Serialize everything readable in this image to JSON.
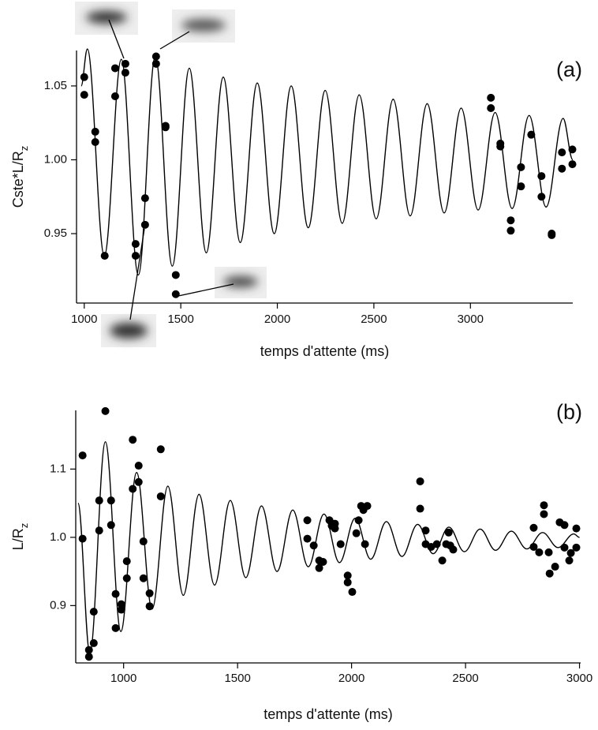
{
  "chart_data": [
    {
      "type": "scatter",
      "panel_label": "(a)",
      "xlabel": "temps d'attente (ms)",
      "ylabel": "Cste*L/Rz",
      "xlim": [
        960,
        3530
      ],
      "ylim": [
        0.903,
        1.074
      ],
      "xticks": [
        1000,
        1500,
        2000,
        2500,
        3000
      ],
      "yticks": [
        0.95,
        {
          "value": 1,
          "label": "1.00"
        },
        1.05
      ],
      "series": [
        {
          "style": "points",
          "color": "#000000",
          "x": [
            1000,
            1000,
            1057,
            1057,
            1106,
            1160,
            1160,
            1213,
            1213,
            1266,
            1266,
            1315,
            1315,
            1372,
            1372,
            1421,
            1421,
            1474,
            1474,
            3106,
            3106,
            3155,
            3155,
            3209,
            3209,
            3262,
            3262,
            3315,
            3368,
            3368,
            3421,
            3421,
            3474,
            3474,
            3528,
            3528
          ],
          "values": [
            1.056,
            1.044,
            1.019,
            1.012,
            0.935,
            1.062,
            1.043,
            1.065,
            1.059,
            0.943,
            0.935,
            0.974,
            0.956,
            1.07,
            1.065,
            1.023,
            1.022,
            0.922,
            0.909,
            1.042,
            1.035,
            1.011,
            1.009,
            0.959,
            0.952,
            0.995,
            0.982,
            1.017,
            0.989,
            0.975,
            0.95,
            0.949,
            1.005,
            0.994,
            1.007,
            0.997
          ]
        },
        {
          "style": "line",
          "color": "#000000",
          "x": [
            984,
            1016,
            1104,
            1192,
            1280,
            1368,
            1456,
            1544,
            1632,
            1720,
            1808,
            1896,
            1984,
            2072,
            2160,
            2248,
            2336,
            2424,
            2512,
            2600,
            2688,
            2776,
            2864,
            2952,
            3040,
            3128,
            3216,
            3304,
            3392,
            3480,
            3530
          ],
          "values": [
            1.05,
            1.075,
            0.935,
            1.068,
            0.922,
            1.07,
            0.928,
            1.062,
            0.937,
            1.056,
            0.944,
            1.052,
            0.95,
            1.05,
            0.954,
            1.047,
            0.957,
            1.044,
            0.96,
            1.041,
            0.962,
            1.038,
            0.964,
            1.035,
            0.966,
            1.032,
            0.967,
            1.03,
            0.968,
            1.028,
            1.0
          ]
        }
      ]
    },
    {
      "type": "scatter",
      "panel_label": "(b)",
      "xlabel": "temps d'attente (ms)",
      "ylabel": "L/Rz",
      "xlim": [
        790,
        3005
      ],
      "ylim": [
        0.816,
        1.186
      ],
      "xticks": [
        1000,
        1500,
        2000,
        2500,
        3000
      ],
      "yticks": [
        0.9,
        {
          "value": 1,
          "label": "1.0"
        },
        1.1
      ],
      "series": [
        {
          "style": "points",
          "color": "#000000",
          "x": [
            820,
            820,
            848,
            848,
            869,
            869,
            893,
            893,
            920,
            945,
            945,
            965,
            965,
            990,
            990,
            1014,
            1014,
            1040,
            1040,
            1066,
            1066,
            1087,
            1087,
            1114,
            1114,
            1163,
            1163,
            1806,
            1806,
            1834,
            1858,
            1858,
            1875,
            1903,
            1913,
            1927,
            1927,
            1952,
            1983,
            1983,
            2003,
            2021,
            2031,
            2042,
            2052,
            2059,
            2069,
            2301,
            2301,
            2325,
            2325,
            2349,
            2374,
            2398,
            2415,
            2426,
            2433,
            2446,
            2799,
            2799,
            2823,
            2844,
            2844,
            2865,
            2869,
            2893,
            2913,
            2934,
            2934,
            2955,
            2962,
            2986,
            2986
          ],
          "values": [
            1.12,
            0.998,
            0.835,
            0.825,
            0.845,
            0.891,
            1.054,
            1.01,
            1.185,
            1.054,
            1.018,
            0.917,
            0.867,
            0.902,
            0.894,
            0.965,
            0.94,
            1.143,
            1.071,
            1.081,
            1.105,
            0.994,
            0.94,
            0.918,
            0.899,
            1.129,
            1.06,
            1.025,
            0.998,
            0.988,
            0.955,
            0.966,
            0.964,
            1.025,
            1.017,
            1.013,
            1.02,
            0.99,
            0.934,
            0.944,
            0.92,
            1.006,
            1.025,
            1.046,
            1.04,
            0.99,
            1.046,
            1.082,
            1.042,
            0.99,
            1.01,
            0.986,
            0.99,
            0.966,
            0.99,
            1.007,
            0.988,
            0.982,
            1.014,
            0.986,
            0.978,
            1.047,
            1.034,
            0.978,
            0.947,
            0.957,
            1.022,
            1.018,
            0.985,
            0.966,
            0.977,
            1.013,
            0.985
          ]
        },
        {
          "style": "line",
          "color": "#000000",
          "x": [
            800,
            852,
            920,
            988,
            1057,
            1125,
            1194,
            1262,
            1331,
            1399,
            1468,
            1536,
            1605,
            1673,
            1742,
            1810,
            1879,
            1947,
            2016,
            2084,
            2153,
            2221,
            2290,
            2358,
            2427,
            2495,
            2564,
            2632,
            2701,
            2769,
            2838,
            2906,
            2975,
            3000
          ],
          "values": [
            1.05,
            0.83,
            1.14,
            0.862,
            1.095,
            0.895,
            1.075,
            0.915,
            1.063,
            0.93,
            1.054,
            0.941,
            1.046,
            0.95,
            1.04,
            0.957,
            1.034,
            0.963,
            1.028,
            0.968,
            1.023,
            0.972,
            1.019,
            0.976,
            1.015,
            0.979,
            1.012,
            0.981,
            1.009,
            0.983,
            1.007,
            0.985,
            1.005,
            1.0
          ]
        }
      ]
    }
  ]
}
